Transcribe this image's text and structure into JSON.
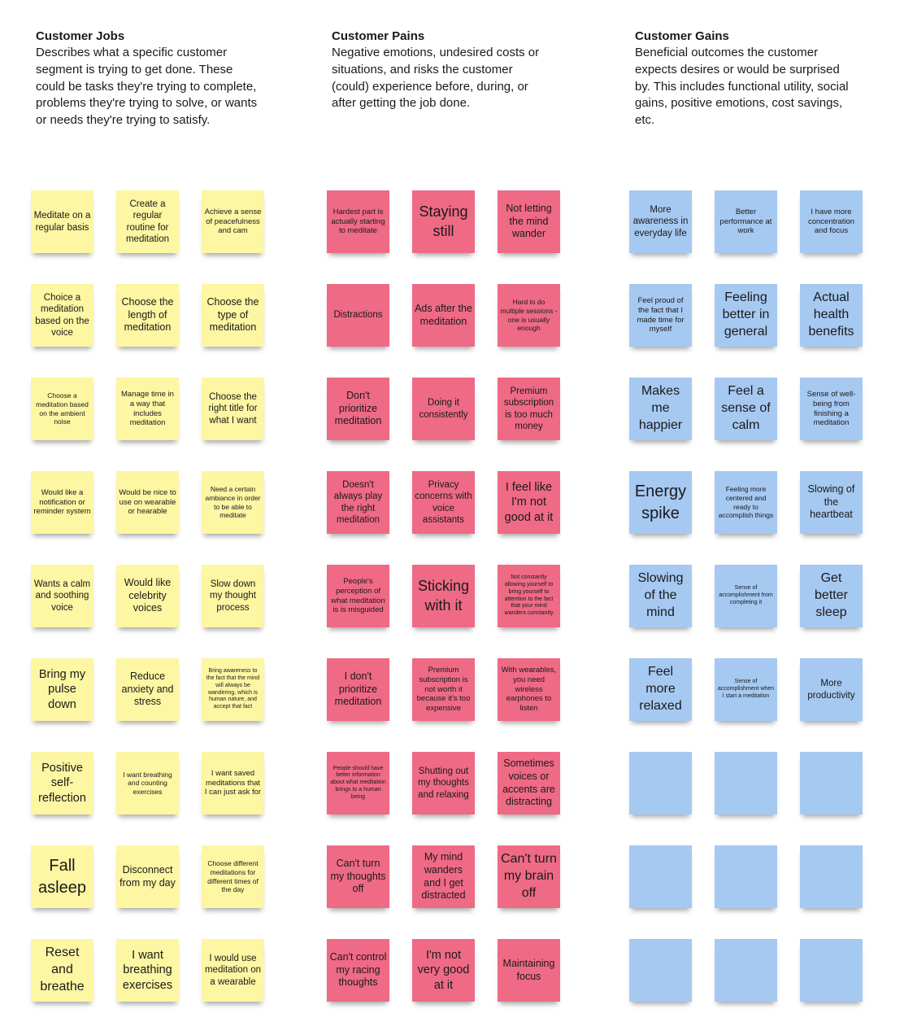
{
  "sections": [
    {
      "title": "Customer Jobs",
      "description": "Describes what a specific customer segment is trying to get done. These could be tasks they're trying to complete, problems they're trying to solve, or wants or needs they're trying to satisfy.",
      "color": "#fdf6a2",
      "notes": [
        "Meditate on a regular basis",
        "Create a regular routine for meditation",
        "Achieve a sense of peacefulness and cam",
        "Choice a meditation based on the voice",
        "Choose the length of meditation",
        "Choose the type of meditation",
        "Choose a meditation based on the ambient noise",
        "Manage time in a way that includes meditation",
        "Choose the right title for what I want",
        "Would like a notification or reminder system",
        "Would be nice to use on wearable or hearable",
        "Need a certain ambiance in order to be able to meditate",
        "Wants a calm and soothing voice",
        "Would like celebrity voices",
        "Slow down my thought process",
        "Bring my pulse down",
        "Reduce anxiety and stress",
        "Bring awareness to the fact that the mind will always be wandering, which is human nature, and accept that fact",
        "Positive self-reflection",
        "I want breathing and counting exercises",
        "I want saved meditations that I can just ask for",
        "Fall asleep",
        "Disconnect from my day",
        "Choose different meditations for different times of the day",
        "Reset and breathe",
        "I want breathing exercises",
        "I would use meditation on a wearable"
      ]
    },
    {
      "title": "Customer Pains",
      "description": "Negative emotions, undesired costs or situations, and risks the customer (could) experience before, during, or after getting the job done.",
      "color": "#ef6a85",
      "notes": [
        "Hardest part is actually starting to meditate",
        "Staying still",
        "Not letting the mind wander",
        "Distractions",
        "Ads after the meditation",
        "Hard to do multiple sessions - one is usually enough",
        "Don't prioritize meditation",
        "Doing it consistently",
        "Premium subscription is too much money",
        "Doesn't always play the right meditation",
        "Privacy concerns with voice assistants",
        "I feel like I'm not good at it",
        "People's perception of what meditation is is misguided",
        "Sticking with it",
        "Not constantly allowing yourself to bring yourself to attention to the fact that your mind wanders constantly",
        "I don't prioritize meditation",
        "Premium subscription is not worth it because it's too expensive",
        "With wearables, you need wireless earphones to listen",
        "People should have better information about what meditation brings to a human being",
        "Shutting out my thoughts and relaxing",
        "Sometimes voices or accents are distracting",
        "Can't turn my thoughts off",
        "My mind wanders and I get distracted",
        "Can't turn my brain off",
        "Can't control my racing thoughts",
        "I'm not very good at it",
        "Maintaining focus"
      ]
    },
    {
      "title": "Customer Gains",
      "description": "Beneficial outcomes the customer expects desires or would be surprised by. This includes functional utility, social gains, positive emotions, cost savings, etc.",
      "color": "#a6c9f2",
      "notes": [
        "More awareness in everyday life",
        "Better performance at work",
        "I have more concentration and focus",
        "Feel proud of the fact that I made time for myself",
        "Feeling better in general",
        "Actual health benefits",
        "Makes me happier",
        "Feel a sense of calm",
        "Sense of well-being from finishing a meditation",
        "Energy spike",
        "Feeling more centered and ready to accomplish things",
        "Slowing of the heartbeat",
        "Slowing of the mind",
        "Sense of accomplishment from completing it",
        "Get better sleep",
        "Feel more relaxed",
        "Sense of accomplishment when I start a meditation",
        "More productivity",
        "",
        "",
        "",
        "",
        "",
        "",
        "",
        "",
        ""
      ]
    }
  ]
}
